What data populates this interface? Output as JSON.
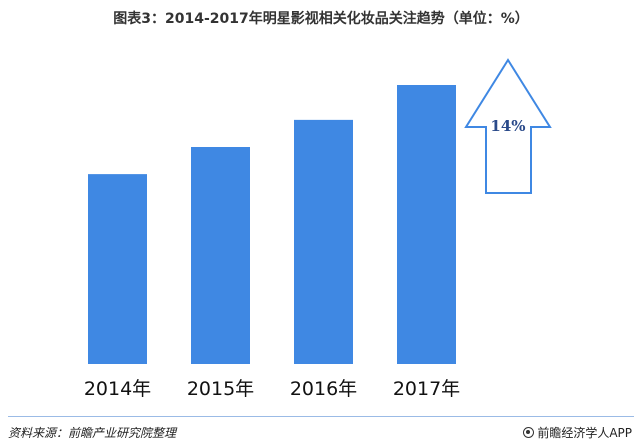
{
  "title": "图表3：2014-2017年明星影视相关化妆品关注趋势（单位：%）",
  "chart_data": {
    "type": "bar",
    "categories": [
      "2014年",
      "2015年",
      "2016年",
      "2017年"
    ],
    "values": [
      49,
      56,
      63,
      72
    ],
    "ylim": [
      0,
      80
    ],
    "grid": false,
    "legend": "none",
    "bar_color": "#3f88e3",
    "annotation": {
      "label": "14%",
      "shape": "up-arrow",
      "color": "#3f88e3"
    }
  },
  "footer": {
    "source": "资料来源：前瞻产业研究院整理",
    "brand": "前瞻经济学人APP"
  }
}
